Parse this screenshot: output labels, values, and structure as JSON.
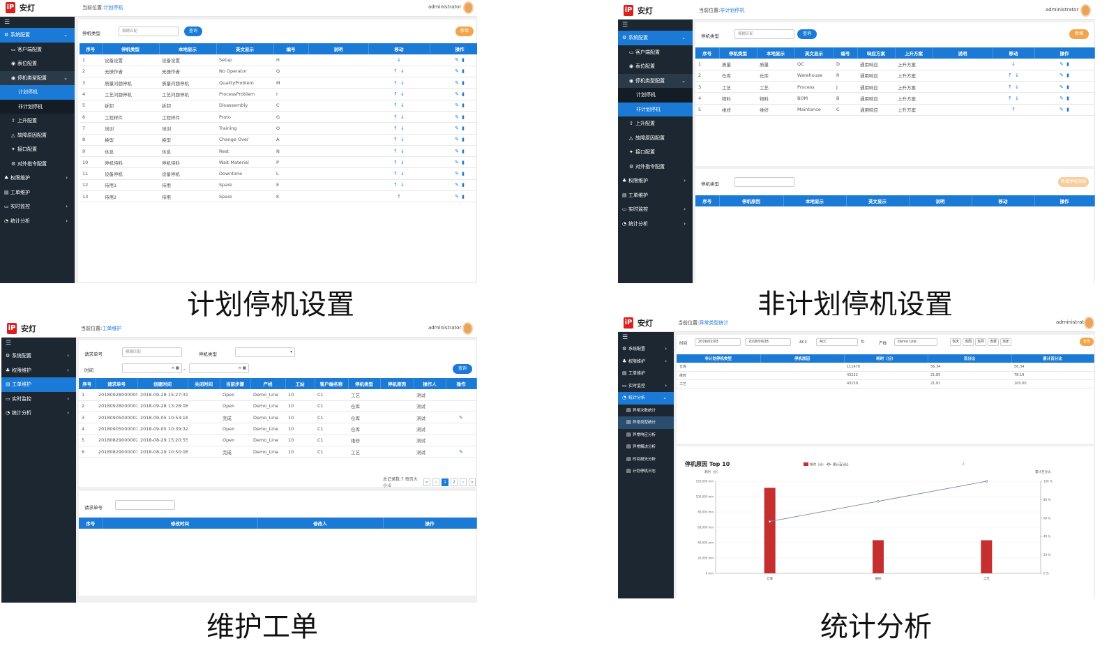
{
  "app": {
    "logo": "iP",
    "name": "安灯",
    "user": "administrator",
    "crumb_label": "当前位置:"
  },
  "captions": {
    "p1": "计划停机设置",
    "p2": "非计划停机设置",
    "p3": "维护工单",
    "p4": "统计分析"
  },
  "p1": {
    "crumb": "计划停机",
    "sidebar": [
      "系统配置",
      "客户端配置",
      "表位配置",
      "停机类型配置",
      "计划停机",
      "非计划停机",
      "上升配置",
      "故障原因配置",
      "接口配置",
      "对外指令配置",
      "权限维护",
      "工单维护",
      "实时监控",
      "统计分析"
    ],
    "filter_label": "停机类型",
    "filter_placeholder": "模糊匹配",
    "search": "查询",
    "add": "新增",
    "headers": [
      "序号",
      "停机类型",
      "本地显示",
      "英文显示",
      "编号",
      "说明",
      "移动",
      "操作"
    ],
    "rows": [
      [
        "1",
        "设备设置",
        "设备设置",
        "Setup",
        "H"
      ],
      [
        "2",
        "无操作者",
        "无操作者",
        "No Operator",
        "Q"
      ],
      [
        "3",
        "质量问题停机",
        "质量问题停机",
        "QualityProblem",
        "M"
      ],
      [
        "4",
        "工艺问题停机",
        "工艺问题停机",
        "ProcessProblem",
        "I"
      ],
      [
        "5",
        "拆卸",
        "拆卸",
        "Disassembly",
        "C"
      ],
      [
        "6",
        "工程样件",
        "工程样件",
        "Proto",
        "G"
      ],
      [
        "7",
        "培训",
        "培训",
        "Training",
        "O"
      ],
      [
        "8",
        "换型",
        "换型",
        "Change Over",
        "A"
      ],
      [
        "9",
        "休息",
        "休息",
        "Rest",
        "N"
      ],
      [
        "10",
        "停机待料",
        "停机待料",
        "Wait Material",
        "P"
      ],
      [
        "11",
        "设备停机",
        "设备停机",
        "Downtime",
        "L"
      ],
      [
        "12",
        "待用1",
        "待用",
        "Spare",
        "E"
      ],
      [
        "13",
        "待用2",
        "待用",
        "Spare",
        "K"
      ]
    ]
  },
  "p2": {
    "crumb": "非计划停机",
    "sidebar": [
      "系统配置",
      "客户端配置",
      "表位配置",
      "停机类型配置",
      "计划停机",
      "非计划停机",
      "上升配置",
      "故障原因配置",
      "接口配置",
      "对外指令配置",
      "权限维护",
      "工单维护",
      "实时监控",
      "统计分析"
    ],
    "filter_label": "停机类型",
    "filter_placeholder": "模糊匹配",
    "search": "查询",
    "add": "新增",
    "headers": [
      "序号",
      "停机类型",
      "本地显示",
      "英文显示",
      "编号",
      "响应方案",
      "上升方案",
      "说明",
      "移动",
      "操作"
    ],
    "rows": [
      [
        "1",
        "质量",
        "质量",
        "QC",
        "D",
        "通用响应",
        "上升方案"
      ],
      [
        "2",
        "仓库",
        "仓库",
        "Warehouse",
        "R",
        "通用响应",
        "上升方案"
      ],
      [
        "3",
        "工艺",
        "工艺",
        "Process",
        "J",
        "通用响应",
        "上升方案"
      ],
      [
        "4",
        "物料",
        "物料",
        "BOM",
        "B",
        "通用响应",
        "上升方案"
      ],
      [
        "5",
        "维修",
        "维修",
        "Maintance",
        "C",
        "通用响应",
        "上升方案"
      ]
    ],
    "filter2_label": "停机类型",
    "add2": "新增停机原因",
    "headers2": [
      "序号",
      "停机原因",
      "本地显示",
      "英文显示",
      "说明",
      "移动",
      "操作"
    ]
  },
  "p3": {
    "crumb": "工单维护",
    "sidebar": [
      "系统配置",
      "权限维护",
      "工单维护",
      "实时监控",
      "统计分析"
    ],
    "req_label": "请求单号",
    "req_placeholder": "模糊匹配",
    "type_label": "停机类型",
    "time_label": "时间",
    "search": "查询",
    "headers": [
      "序号",
      "请求单号",
      "创建时间",
      "关闭时间",
      "当前步骤",
      "产线",
      "工站",
      "客户端名称",
      "停机类型",
      "停机原因",
      "操作人",
      "操作"
    ],
    "rows": [
      [
        "1",
        "20180928000005",
        "2018-09-28 15:27:31",
        "",
        "Open",
        "Demo_Line",
        "10",
        "C1",
        "工艺",
        "",
        "测试"
      ],
      [
        "2",
        "20180928000001",
        "2018-09-28 13:28:08",
        "",
        "Open",
        "Demo_Line",
        "10",
        "C1",
        "仓库",
        "",
        "测试"
      ],
      [
        "3",
        "20180905000002",
        "2018-09-05 10:53:18",
        "",
        "完成",
        "Demo_Line",
        "10",
        "C1",
        "仓库",
        "",
        "测试"
      ],
      [
        "4",
        "20180905000001",
        "2018-09-05 10:39:32",
        "",
        "Open",
        "Demo_Line",
        "10",
        "C1",
        "仓库",
        "",
        "测试"
      ],
      [
        "5",
        "20180829000002",
        "2018-08-29 15:20:55",
        "",
        "Open",
        "Demo_Line",
        "10",
        "C1",
        "维修",
        "",
        "测试"
      ],
      [
        "6",
        "20180829000001",
        "2018-08-29 10:50:08",
        "",
        "完成",
        "Demo_Line",
        "10",
        "C1",
        "工艺",
        "",
        "测试"
      ]
    ],
    "pager_text": "总记录数:7 每页大小:6",
    "pages": [
      "«",
      "‹",
      "1",
      "2",
      "›",
      "»"
    ],
    "req2_label": "请求单号",
    "headers2": [
      "序号",
      "修改时间",
      "修改人",
      "操作"
    ]
  },
  "p4": {
    "crumb": "异常类型统计",
    "sidebar": [
      "系统配置",
      "权限维护",
      "工单维护",
      "实时监控",
      "统计分析",
      "异常次数统计",
      "异常类型统计",
      "异常响应分析",
      "异常解决分析",
      "时间损失分析",
      "计划停机日志"
    ],
    "time_label": "时间",
    "date_from": "2016/02/03",
    "date_to": "2018/09/28",
    "acc_label": "ACC",
    "acc_value": "ACC",
    "line_label": "产线",
    "line_value": "Demo Line",
    "quick": [
      "当天",
      "当周",
      "当月",
      "当季",
      "当年"
    ],
    "search": "查询",
    "headers": [
      "非计划停机类型",
      "停机原因",
      "耗时（分）",
      "百分比",
      "累计百分比"
    ],
    "rows": [
      [
        "仓库",
        "",
        "111470",
        "56.34",
        "56.34"
      ],
      [
        "维修",
        "",
        "43222",
        "21.85",
        "78.19"
      ],
      [
        "工艺",
        "",
        "43159",
        "21.81",
        "100.00"
      ]
    ],
    "chart_data": {
      "type": "bar",
      "title": "停机原因 Top 10",
      "ylabel": "耗时（分）",
      "y2label": "累计百分比",
      "categories": [
        "仓库",
        "维修",
        "工艺"
      ],
      "series": [
        {
          "name": "耗时（分）",
          "type": "bar",
          "values": [
            111470,
            43222,
            43159
          ]
        },
        {
          "name": "累计百分比",
          "type": "line",
          "values": [
            56.34,
            78.19,
            100.0
          ]
        }
      ],
      "ylim": [
        0,
        120000
      ],
      "y2lim": [
        0,
        100
      ],
      "yticks": [
        "0 min",
        "20,000 min",
        "40,000 min",
        "60,000 min",
        "80,000 min",
        "100,000 min",
        "120,000 min"
      ],
      "y2ticks": [
        "0 %",
        "20 %",
        "40 %",
        "60 %",
        "80 %",
        "100 %"
      ],
      "colors": {
        "bar": "#c62f2f",
        "line": "#7d8896"
      }
    }
  }
}
